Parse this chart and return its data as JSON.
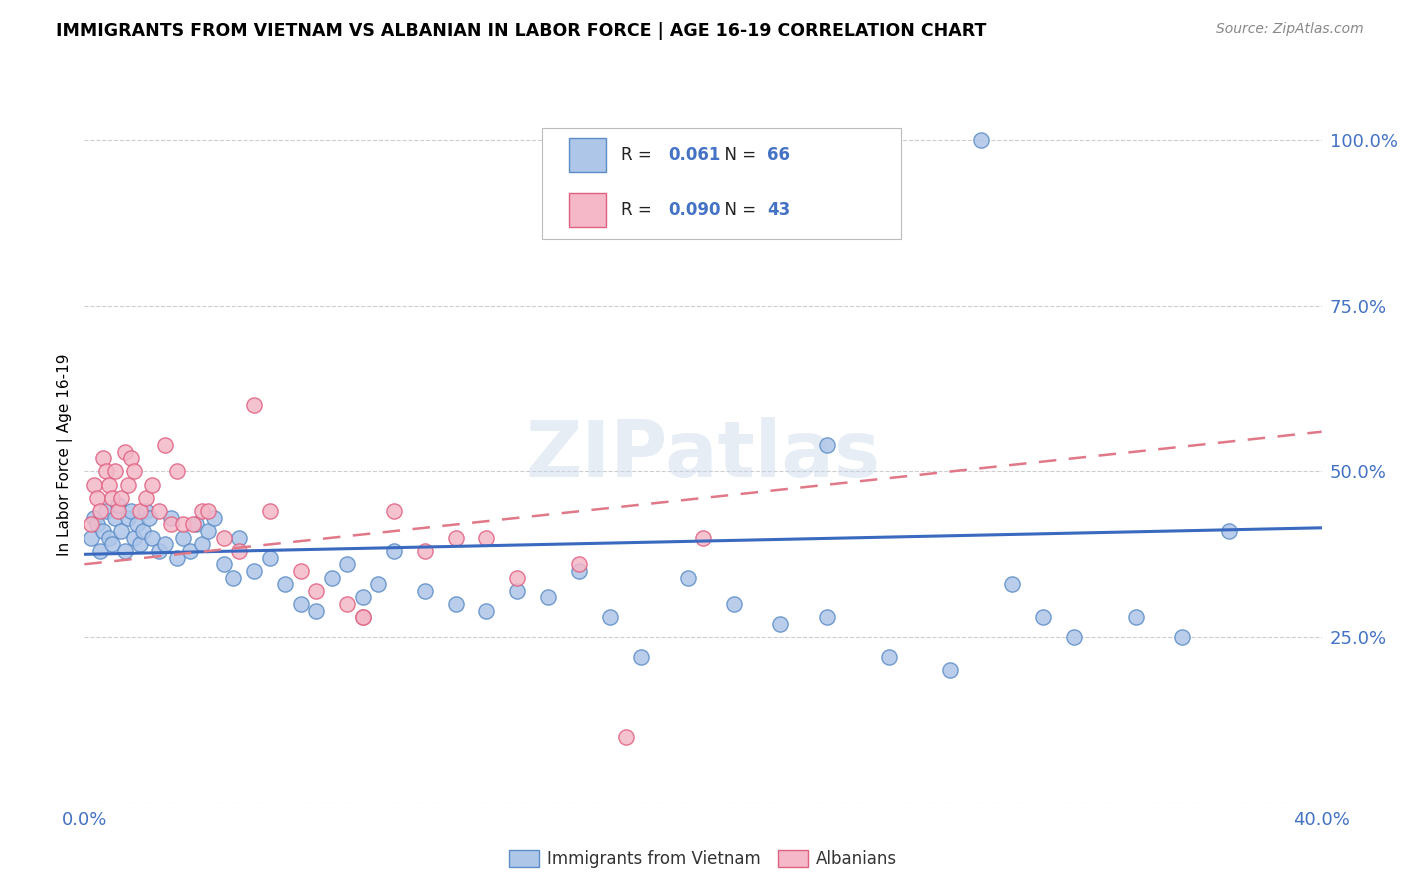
{
  "title": "IMMIGRANTS FROM VIETNAM VS ALBANIAN IN LABOR FORCE | AGE 16-19 CORRELATION CHART",
  "source": "Source: ZipAtlas.com",
  "ylabel": "In Labor Force | Age 16-19",
  "xlim": [
    0.0,
    0.4
  ],
  "ylim": [
    0.0,
    1.05
  ],
  "ytick_vals": [
    0.0,
    0.25,
    0.5,
    0.75,
    1.0
  ],
  "ytick_labels": [
    "",
    "25.0%",
    "50.0%",
    "75.0%",
    "100.0%"
  ],
  "xtick_vals": [
    0.0,
    0.05,
    0.1,
    0.15,
    0.2,
    0.25,
    0.3,
    0.35,
    0.4
  ],
  "xtick_labels": [
    "0.0%",
    "",
    "",
    "",
    "",
    "",
    "",
    "",
    "40.0%"
  ],
  "vietnam_color": "#aec6e8",
  "albanian_color": "#f4b8c8",
  "vietnam_edge_color": "#5b8dc8",
  "albanian_edge_color": "#e06080",
  "vietnam_line_color": "#3a6abf",
  "albanian_line_color": "#e07888",
  "legend_r_vietnam": "0.061",
  "legend_n_vietnam": "66",
  "legend_r_albanian": "0.090",
  "legend_n_albanian": "43",
  "watermark": "ZIPatlas",
  "vietnam_scatter_x": [
    0.002,
    0.003,
    0.004,
    0.005,
    0.006,
    0.007,
    0.008,
    0.009,
    0.01,
    0.011,
    0.012,
    0.013,
    0.014,
    0.015,
    0.016,
    0.017,
    0.018,
    0.019,
    0.02,
    0.021,
    0.022,
    0.024,
    0.026,
    0.028,
    0.03,
    0.032,
    0.034,
    0.036,
    0.038,
    0.04,
    0.042,
    0.045,
    0.048,
    0.05,
    0.055,
    0.06,
    0.065,
    0.07,
    0.075,
    0.08,
    0.085,
    0.09,
    0.095,
    0.1,
    0.11,
    0.12,
    0.13,
    0.14,
    0.15,
    0.16,
    0.17,
    0.18,
    0.195,
    0.21,
    0.225,
    0.24,
    0.26,
    0.28,
    0.3,
    0.31,
    0.32,
    0.34,
    0.355,
    0.37,
    0.24,
    0.29
  ],
  "vietnam_scatter_y": [
    0.4,
    0.43,
    0.42,
    0.38,
    0.41,
    0.44,
    0.4,
    0.39,
    0.43,
    0.45,
    0.41,
    0.38,
    0.43,
    0.44,
    0.4,
    0.42,
    0.39,
    0.41,
    0.44,
    0.43,
    0.4,
    0.38,
    0.39,
    0.43,
    0.37,
    0.4,
    0.38,
    0.42,
    0.39,
    0.41,
    0.43,
    0.36,
    0.34,
    0.4,
    0.35,
    0.37,
    0.33,
    0.3,
    0.29,
    0.34,
    0.36,
    0.31,
    0.33,
    0.38,
    0.32,
    0.3,
    0.29,
    0.32,
    0.31,
    0.35,
    0.28,
    0.22,
    0.34,
    0.3,
    0.27,
    0.28,
    0.22,
    0.2,
    0.33,
    0.28,
    0.25,
    0.28,
    0.25,
    0.41,
    0.54,
    1.0
  ],
  "albanian_scatter_x": [
    0.002,
    0.003,
    0.004,
    0.005,
    0.006,
    0.007,
    0.008,
    0.009,
    0.01,
    0.011,
    0.012,
    0.013,
    0.014,
    0.015,
    0.016,
    0.018,
    0.02,
    0.022,
    0.024,
    0.026,
    0.028,
    0.03,
    0.032,
    0.035,
    0.038,
    0.04,
    0.045,
    0.05,
    0.055,
    0.06,
    0.07,
    0.075,
    0.085,
    0.09,
    0.1,
    0.11,
    0.12,
    0.13,
    0.14,
    0.16,
    0.175,
    0.2,
    0.09
  ],
  "albanian_scatter_y": [
    0.42,
    0.48,
    0.46,
    0.44,
    0.52,
    0.5,
    0.48,
    0.46,
    0.5,
    0.44,
    0.46,
    0.53,
    0.48,
    0.52,
    0.5,
    0.44,
    0.46,
    0.48,
    0.44,
    0.54,
    0.42,
    0.5,
    0.42,
    0.42,
    0.44,
    0.44,
    0.4,
    0.38,
    0.6,
    0.44,
    0.35,
    0.32,
    0.3,
    0.28,
    0.44,
    0.38,
    0.4,
    0.4,
    0.34,
    0.36,
    0.1,
    0.4,
    0.28
  ],
  "vietnam_trendline": [
    0.375,
    0.415
  ],
  "albanian_trendline": [
    0.36,
    0.56
  ]
}
